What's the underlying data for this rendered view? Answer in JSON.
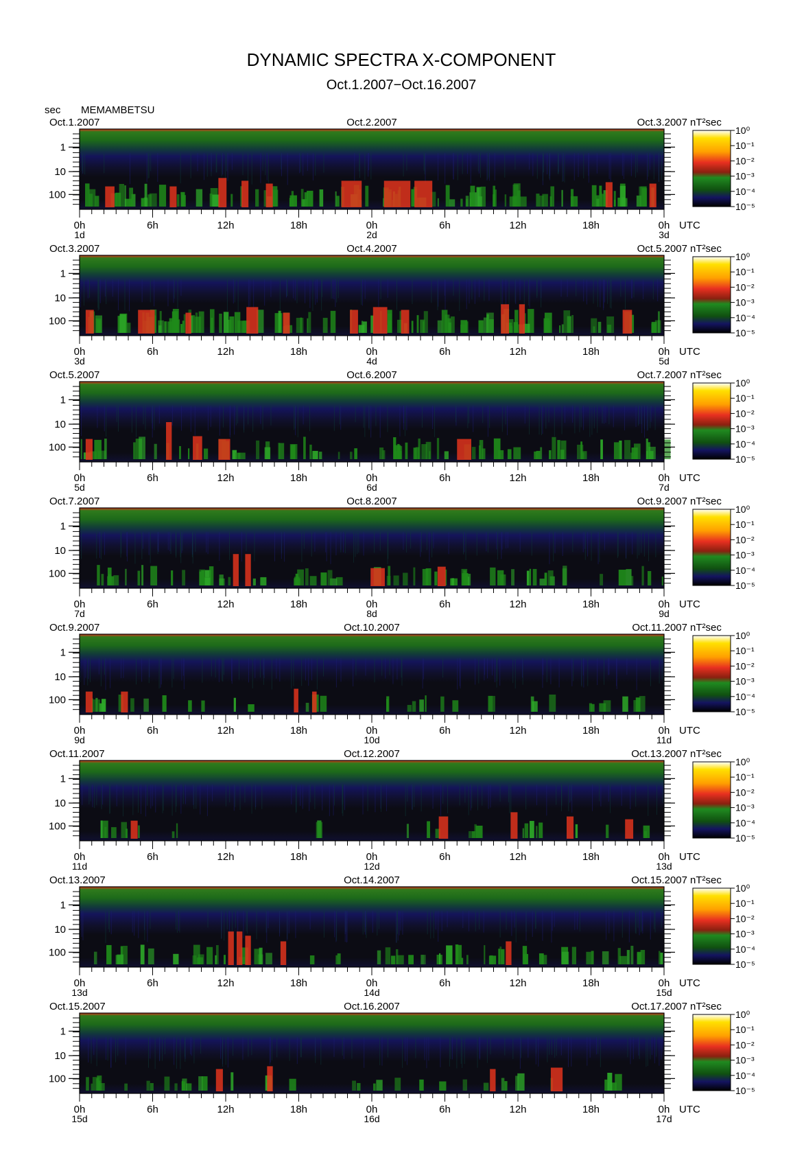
{
  "title": "DYNAMIC SPECTRA X-COMPONENT",
  "subtitle": "Oct.1.2007−Oct.16.2007",
  "station_label": "MEMAMBETSU",
  "y_unit": "sec",
  "colorbar_unit": "nT²sec",
  "utc_label": "UTC",
  "colors": {
    "background_dark": "#0c0c14",
    "noise_blue": "#14145a",
    "band_green": "#1f8a1a",
    "burst_red": "#e0341c",
    "top_edge_red": "#d8321c",
    "colorbar_top": "#ffffff"
  },
  "chart_data": {
    "type": "heatmap",
    "title": "DYNAMIC SPECTRA X-COMPONENT",
    "subtitle": "Oct.1.2007−Oct.16.2007",
    "station": "MEMAMBETSU",
    "ylabel": "sec",
    "y_scale": "log",
    "y_ticks": [
      "1",
      "10",
      "100"
    ],
    "x_ticks": [
      "0h",
      "6h",
      "12h",
      "18h",
      "0h",
      "6h",
      "12h",
      "18h",
      "0h"
    ],
    "x_unit": "UTC",
    "colorbar": {
      "unit": "nT²sec",
      "scale": "log",
      "ticks": [
        "10⁰",
        "10⁻¹",
        "10⁻²",
        "10⁻³",
        "10⁻⁴",
        "10⁻⁵"
      ]
    },
    "panels": [
      {
        "date_left": "Oct.1.2007",
        "date_mid": "Oct.2.2007",
        "date_right": "Oct.3.2007",
        "day_left": "1d",
        "day_mid": "2d",
        "day_right": "3d",
        "activity": 0.55,
        "bursts": [
          [
            2.1,
            0.6,
            0.4
          ],
          [
            7.4,
            0.4,
            0.4
          ],
          [
            11.4,
            0.5,
            0.7
          ],
          [
            13.3,
            0.4,
            0.6
          ],
          [
            15.3,
            0.4,
            0.5
          ],
          [
            21.5,
            1.5,
            0.6
          ],
          [
            25,
            2,
            0.6
          ],
          [
            27.5,
            1.3,
            0.6
          ],
          [
            43.2,
            0.4,
            0.55
          ],
          [
            46.8,
            0.4,
            0.5
          ]
        ],
        "gaps": []
      },
      {
        "date_left": "Oct.3.2007",
        "date_mid": "Oct.4.2007",
        "date_right": "Oct.5.2007",
        "day_left": "3d",
        "day_mid": "4d",
        "day_right": "5d",
        "activity": 0.6,
        "bursts": [
          [
            0.5,
            0.5,
            0.5
          ],
          [
            4.8,
            1.2,
            0.5
          ],
          [
            8.7,
            0.3,
            0.4
          ],
          [
            13.7,
            0.8,
            0.6
          ],
          [
            16.7,
            0.4,
            0.4
          ],
          [
            22.2,
            0.5,
            0.5
          ],
          [
            24.1,
            1.0,
            0.6
          ],
          [
            26.4,
            0.5,
            0.5
          ],
          [
            34.6,
            0.5,
            0.7
          ],
          [
            36.1,
            0.3,
            0.7
          ],
          [
            44.6,
            0.6,
            0.5
          ]
        ],
        "gaps": []
      },
      {
        "date_left": "Oct.5.2007",
        "date_mid": "Oct.6.2007",
        "date_right": "Oct.7.2007",
        "day_left": "5d",
        "day_mid": "6d",
        "day_right": "7d",
        "activity": 0.5,
        "bursts": [
          [
            0.5,
            0.4,
            0.4
          ],
          [
            7.1,
            0.3,
            1.0
          ],
          [
            9.3,
            0.6,
            0.5
          ],
          [
            11.4,
            0.8,
            0.4
          ],
          [
            31,
            1.0,
            0.4
          ]
        ],
        "gaps": []
      },
      {
        "date_left": "Oct.7.2007",
        "date_mid": "Oct.8.2007",
        "date_right": "Oct.9.2007",
        "day_left": "7d",
        "day_mid": "8d",
        "day_right": "9d",
        "activity": 0.4,
        "bursts": [
          [
            12.6,
            0.3,
            0.8
          ],
          [
            13.6,
            0.3,
            0.8
          ],
          [
            23.9,
            1.0,
            0.3
          ],
          [
            29.4,
            0.5,
            0.35
          ]
        ],
        "gaps": [
          [
            15.0,
            16.5
          ]
        ]
      },
      {
        "date_left": "Oct.9.2007",
        "date_mid": "Oct.10.2007",
        "date_right": "Oct.11.2007",
        "day_left": "9d",
        "day_mid": "10d",
        "day_right": "11d",
        "activity": 0.22,
        "bursts": [
          [
            0.5,
            0.4,
            0.4
          ],
          [
            3.4,
            0.4,
            0.4
          ],
          [
            17.6,
            0.2,
            0.5
          ],
          [
            19.1,
            0.2,
            0.4
          ]
        ],
        "gaps": [
          [
            14.5,
            17.0
          ],
          [
            20.2,
            23.5
          ]
        ]
      },
      {
        "date_left": "Oct.11.2007",
        "date_mid": "Oct.12.2007",
        "date_right": "Oct.13.2007",
        "day_left": "11d",
        "day_mid": "12d",
        "day_right": "13d",
        "activity": 0.25,
        "bursts": [
          [
            4.2,
            0.4,
            0.3
          ],
          [
            29.5,
            0.6,
            0.45
          ],
          [
            35.4,
            0.4,
            0.6
          ],
          [
            40.0,
            0.4,
            0.45
          ],
          [
            44.8,
            0.5,
            0.35
          ]
        ],
        "gaps": [
          [
            9.5,
            16.5
          ],
          [
            20.5,
            25.0
          ]
        ]
      },
      {
        "date_left": "Oct.13.2007",
        "date_mid": "Oct.14.2007",
        "date_right": "Oct.15.2007",
        "day_left": "13d",
        "day_mid": "14d",
        "day_right": "15d",
        "activity": 0.35,
        "bursts": [
          [
            12.2,
            0.3,
            0.85
          ],
          [
            12.9,
            0.3,
            0.85
          ],
          [
            13.6,
            0.3,
            0.7
          ],
          [
            35.0,
            0.3,
            0.5
          ],
          [
            16.5,
            0.3,
            0.5
          ]
        ],
        "gaps": [
          [
            19.0,
            21.0
          ]
        ]
      },
      {
        "date_left": "Oct.15.2007",
        "date_mid": "Oct.16.2007",
        "date_right": "Oct.17.2007",
        "day_left": "15d",
        "day_mid": "16d",
        "day_right": "17d",
        "activity": 0.25,
        "bursts": [
          [
            11.2,
            0.4,
            0.45
          ],
          [
            15.4,
            0.3,
            0.55
          ],
          [
            33.7,
            0.3,
            0.45
          ],
          [
            38.7,
            0.8,
            0.5
          ]
        ],
        "gaps": [
          [
            17.5,
            22.0
          ],
          [
            44.0,
            46.5
          ]
        ]
      }
    ]
  }
}
